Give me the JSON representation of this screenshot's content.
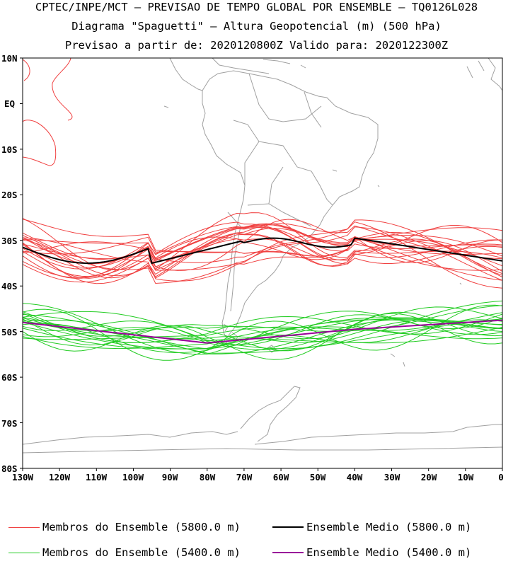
{
  "header": {
    "line1": "CPTEC/INPE/MCT – PREVISAO DE TEMPO GLOBAL POR ENSEMBLE – TQ0126L028",
    "line2": "Diagrama \"Spaguetti\" – Altura Geopotencial (m) (500 hPa)",
    "line3": "Previsao a partir de: 2020120800Z   Valido para: 2020122300Z"
  },
  "axes": {
    "lat_labels": [
      "10N",
      "EQ",
      "10S",
      "20S",
      "30S",
      "40S",
      "50S",
      "60S",
      "70S",
      "80S"
    ],
    "lon_labels": [
      "130W",
      "120W",
      "110W",
      "100W",
      "90W",
      "80W",
      "70W",
      "60W",
      "50W",
      "40W",
      "30W",
      "20W",
      "10W",
      "0"
    ]
  },
  "legend": {
    "members_5800": "Membros do Ensemble (5800.0 m)",
    "mean_5800": "Ensemble Medio (5800.0 m)",
    "members_5400": "Membros do Ensemble (5400.0 m)",
    "mean_5400": "Ensemble Medio (5400.0 m)"
  },
  "colors": {
    "members_5800": "#f04040",
    "mean_5800": "#000000",
    "members_5400": "#22cc22",
    "mean_5400": "#990099",
    "coastline": "#a0a0a0"
  }
}
